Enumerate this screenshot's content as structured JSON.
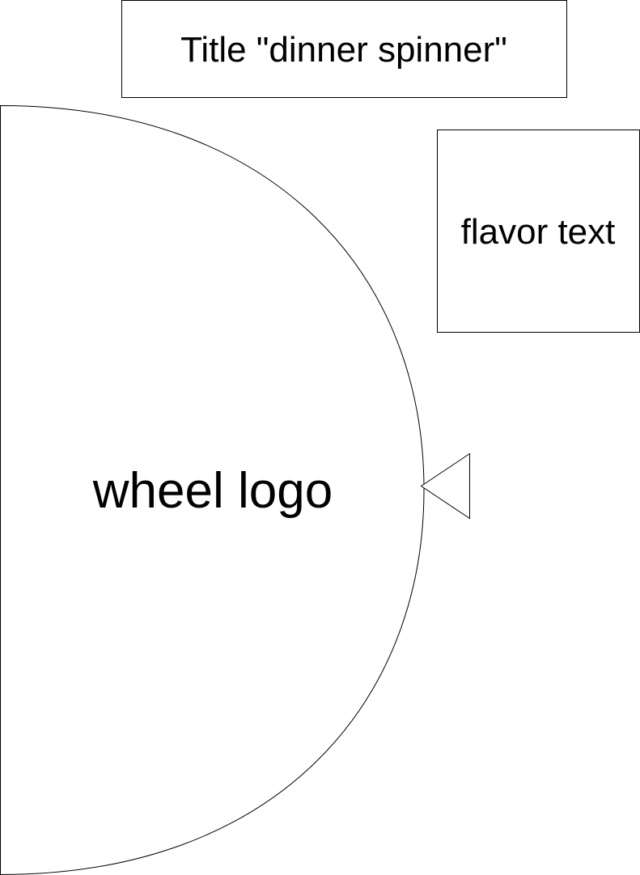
{
  "title_box": {
    "label": "Title \"dinner spinner\""
  },
  "flavor_box": {
    "label": "flavor text"
  },
  "wheel": {
    "label": "wheel logo"
  },
  "pointer": {
    "icon": "triangle-pointer-icon"
  },
  "colors": {
    "stroke": "#000000",
    "fill": "#ffffff"
  }
}
